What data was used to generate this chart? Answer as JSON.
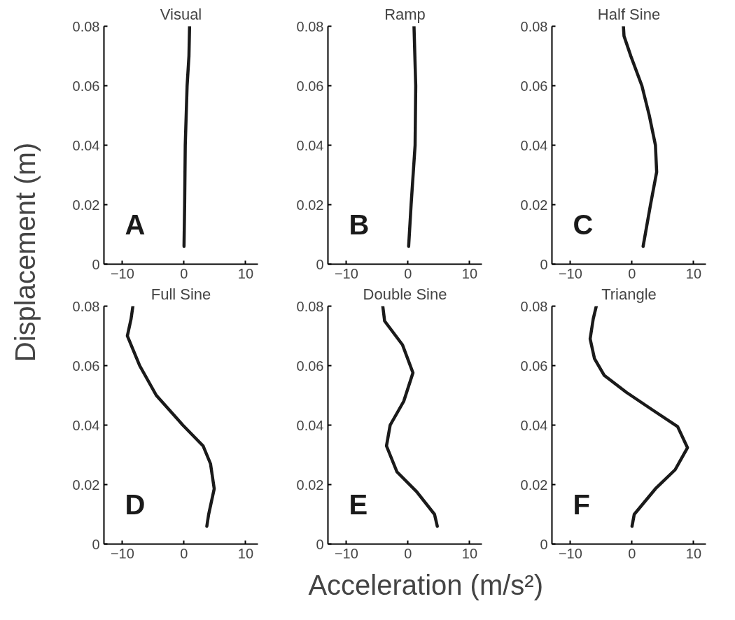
{
  "chart_data": [
    {
      "type": "line",
      "title": "Visual",
      "ylabel": "Displacement (m)",
      "annotations": [
        "A"
      ],
      "xlim": [
        -13,
        12
      ],
      "xticks": [
        -10,
        0,
        10
      ],
      "ylim": [
        0,
        0.08
      ],
      "yticks": [
        0,
        0.02,
        0.04,
        0.06,
        0.08
      ],
      "line_style": "solid",
      "series": [
        {
          "color": "#1a1a1a",
          "x": [
            0,
            0.1,
            0.2,
            0.5,
            0.8,
            0.9
          ],
          "values": [
            0.006,
            0.02,
            0.04,
            0.06,
            0.07,
            0.08
          ]
        }
      ]
    },
    {
      "type": "line",
      "title": "Ramp",
      "annotations": [
        "B"
      ],
      "xlim": [
        -13,
        12
      ],
      "xticks": [
        -10,
        0,
        10
      ],
      "ylim": [
        0,
        0.08
      ],
      "yticks": [
        0,
        0.02,
        0.04,
        0.06,
        0.08
      ],
      "line_style": "solid",
      "series": [
        {
          "color": "#1a1a1a",
          "x": [
            0.1,
            0.5,
            1.15,
            1.25,
            0.97
          ],
          "values": [
            0.006,
            0.02,
            0.04,
            0.06,
            0.08
          ]
        }
      ]
    },
    {
      "type": "line",
      "title": "Half Sine",
      "annotations": [
        "C"
      ],
      "xlim": [
        -13,
        12
      ],
      "xticks": [
        -10,
        0,
        10
      ],
      "ylim": [
        0,
        0.08
      ],
      "yticks": [
        0,
        0.02,
        0.04,
        0.06,
        0.08
      ],
      "line_style": "solid",
      "series": [
        {
          "color": "#1a1a1a",
          "x": [
            1.8,
            3.0,
            4.0,
            3.8,
            2.8,
            1.6,
            -0.2,
            -1.3,
            -1.4
          ],
          "values": [
            0.006,
            0.02,
            0.031,
            0.04,
            0.05,
            0.06,
            0.07,
            0.0767,
            0.08
          ]
        }
      ]
    },
    {
      "type": "line",
      "title": "Full Sine",
      "annotations": [
        "D"
      ],
      "xlim": [
        -13,
        12
      ],
      "xticks": [
        -10,
        0,
        10
      ],
      "ylim": [
        0,
        0.08
      ],
      "yticks": [
        0,
        0.02,
        0.04,
        0.06,
        0.08
      ],
      "line_style": "solid",
      "series": [
        {
          "color": "#1a1a1a",
          "x": [
            3.7,
            4.0,
            4.9,
            4.3,
            3.1,
            -0.2,
            -4.5,
            -7.2,
            -9.2,
            -8.6,
            -8.3
          ],
          "values": [
            0.006,
            0.01,
            0.0186,
            0.027,
            0.033,
            0.04,
            0.05,
            0.06,
            0.07,
            0.0757,
            0.08
          ]
        }
      ]
    },
    {
      "type": "line",
      "title": "Double Sine",
      "xlabel": "Acceleration (m/s²)",
      "annotations": [
        "E"
      ],
      "xlim": [
        -13,
        12
      ],
      "xticks": [
        -10,
        0,
        10
      ],
      "ylim": [
        0,
        0.08
      ],
      "yticks": [
        0,
        0.02,
        0.04,
        0.06,
        0.08
      ],
      "line_style": "solid",
      "series": [
        {
          "color": "#1a1a1a",
          "x": [
            4.75,
            4.3,
            1.4,
            -1.8,
            -3.5,
            -2.9,
            -0.7,
            0.8,
            -0.9,
            -3.8,
            -4.1
          ],
          "values": [
            0.006,
            0.01,
            0.0176,
            0.0243,
            0.033,
            0.04,
            0.048,
            0.0576,
            0.067,
            0.075,
            0.08
          ]
        }
      ]
    },
    {
      "type": "line",
      "title": "Triangle",
      "annotations": [
        "F"
      ],
      "xlim": [
        -13,
        12
      ],
      "xticks": [
        -10,
        0,
        10
      ],
      "ylim": [
        0,
        0.08
      ],
      "yticks": [
        0,
        0.02,
        0.04,
        0.06,
        0.08
      ],
      "line_style": "solid",
      "series": [
        {
          "color": "#1a1a1a",
          "x": [
            0,
            0.36,
            3.8,
            7.0,
            9.0,
            7.4,
            3.4,
            -0.9,
            -4.5,
            -6.1,
            -6.8,
            -6.3,
            -5.8
          ],
          "values": [
            0.006,
            0.01,
            0.0186,
            0.025,
            0.0324,
            0.0395,
            0.045,
            0.051,
            0.0567,
            0.0624,
            0.069,
            0.0757,
            0.08
          ]
        }
      ]
    }
  ]
}
